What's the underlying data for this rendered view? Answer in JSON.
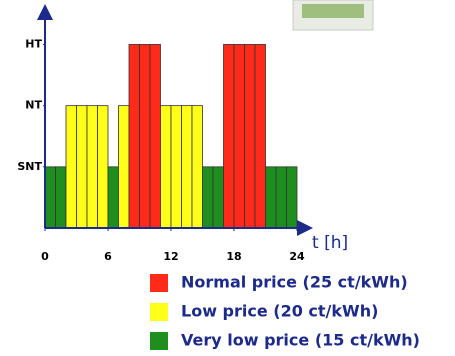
{
  "chart_data": {
    "type": "bar",
    "x": [
      0,
      1,
      2,
      3,
      4,
      5,
      6,
      7,
      8,
      9,
      10,
      11,
      12,
      13,
      14,
      15,
      16,
      17,
      18,
      19,
      20,
      21,
      22,
      23
    ],
    "values": [
      1,
      1,
      2,
      2,
      2,
      2,
      1,
      2,
      3,
      3,
      3,
      2,
      2,
      2,
      2,
      1,
      1,
      3,
      3,
      3,
      3,
      1,
      1,
      1
    ],
    "xlim": [
      0,
      24
    ],
    "xticks": [
      0,
      6,
      12,
      18,
      24
    ],
    "ylim": [
      0,
      3.4
    ],
    "yticks": [
      {
        "value": 1,
        "label": "SNT"
      },
      {
        "value": 2,
        "label": "NT"
      },
      {
        "value": 3,
        "label": "HT"
      }
    ],
    "x_label": "t [h]",
    "legend": [
      {
        "label": "Normal price (25 ct/kWh)",
        "color": "#ff2a1a",
        "level": 3
      },
      {
        "label": "Low price (20  ct/kWh)",
        "color": "#ffff1a",
        "level": 2
      },
      {
        "label": "Very low price (15 ct/kWh)",
        "color": "#1e8f1e",
        "level": 1
      }
    ]
  }
}
